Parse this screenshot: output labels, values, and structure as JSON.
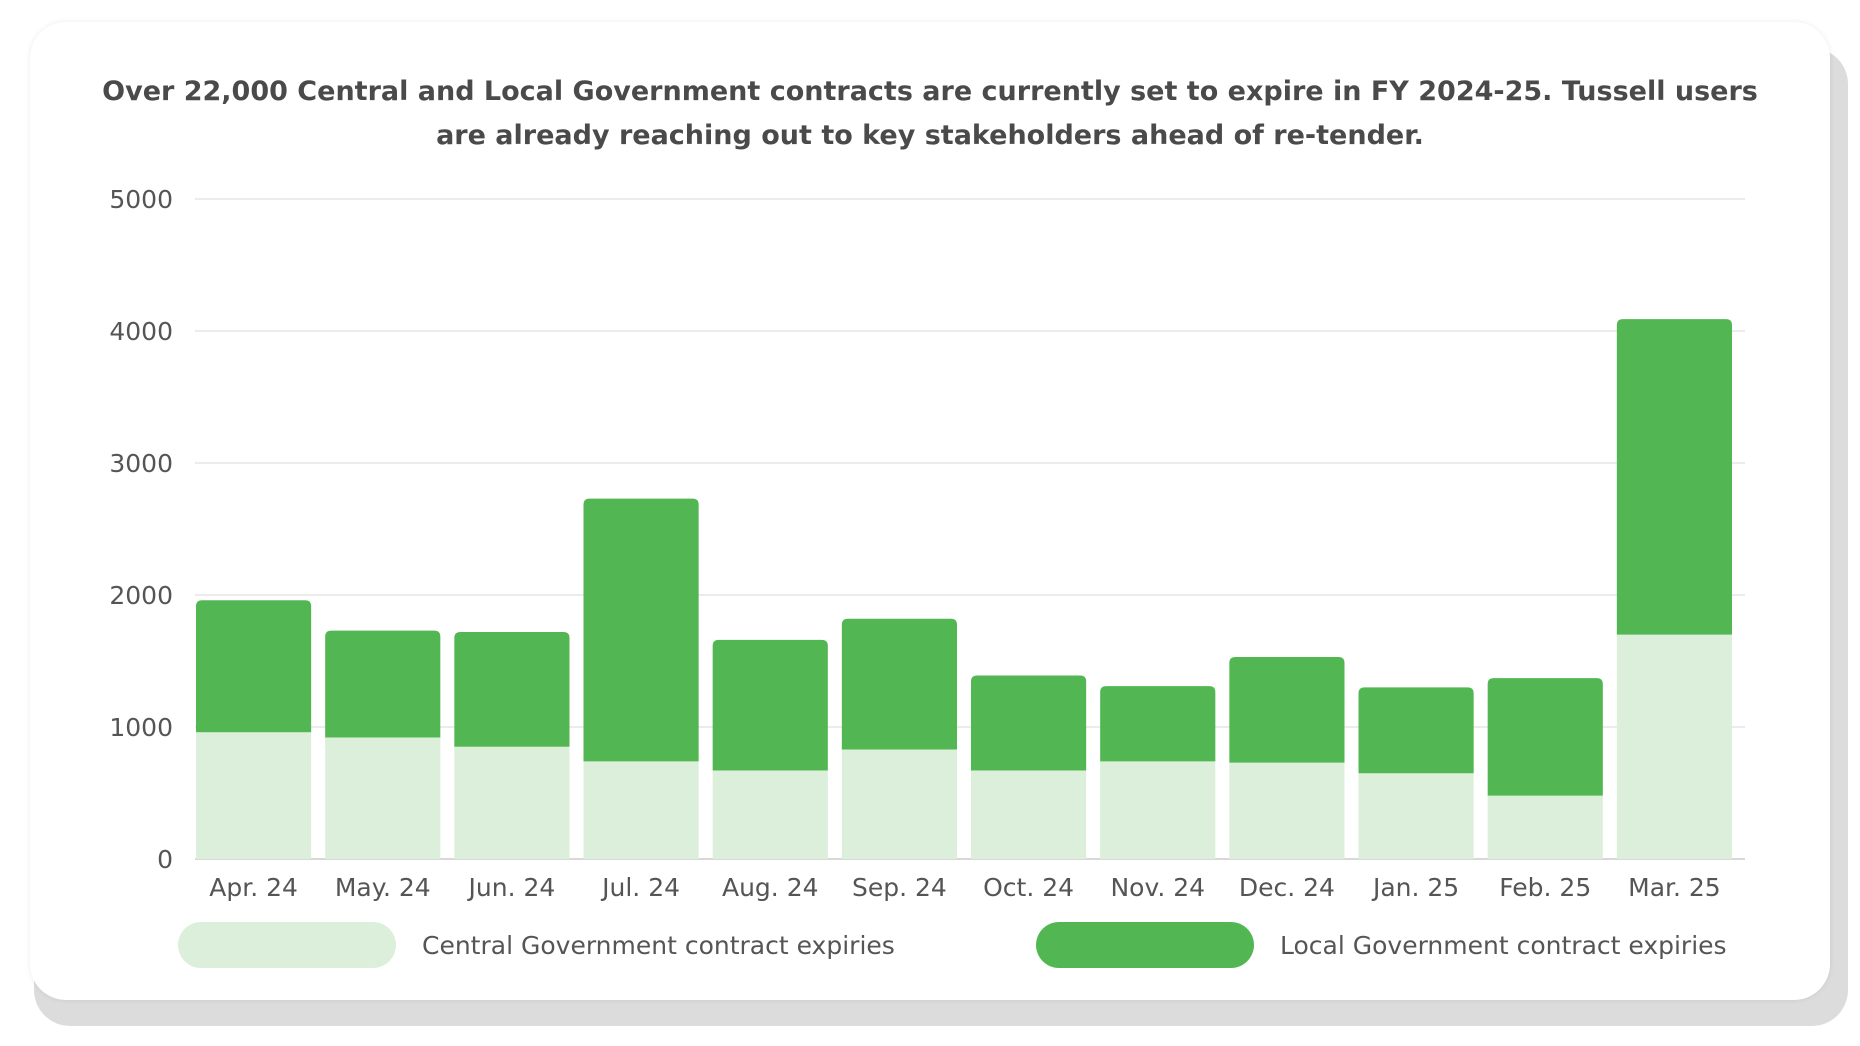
{
  "chart_data": {
    "type": "bar",
    "stacked": true,
    "title": "Over 22,000 Central and Local Government contracts are currently set to expire in FY 2024-25. Tussell users are already reaching out to key stakeholders ahead of re-tender.",
    "xlabel": "",
    "ylabel": "",
    "ylim": [
      0,
      5000
    ],
    "yticks": [
      0,
      1000,
      2000,
      3000,
      4000,
      5000
    ],
    "grid": true,
    "legend_position": "bottom",
    "categories": [
      "Apr. 24",
      "May. 24",
      "Jun. 24",
      "Jul. 24",
      "Aug. 24",
      "Sep. 24",
      "Oct. 24",
      "Nov. 24",
      "Dec. 24",
      "Jan. 25",
      "Feb. 25",
      "Mar. 25"
    ],
    "series": [
      {
        "name": "Central Government contract expiries",
        "color": "#dcefdb",
        "values": [
          960,
          920,
          850,
          740,
          670,
          830,
          670,
          740,
          730,
          650,
          480,
          1700
        ]
      },
      {
        "name": "Local Government contract expiries",
        "color": "#52b752",
        "values": [
          1000,
          810,
          870,
          1990,
          990,
          990,
          720,
          570,
          800,
          650,
          890,
          2390
        ]
      }
    ]
  }
}
